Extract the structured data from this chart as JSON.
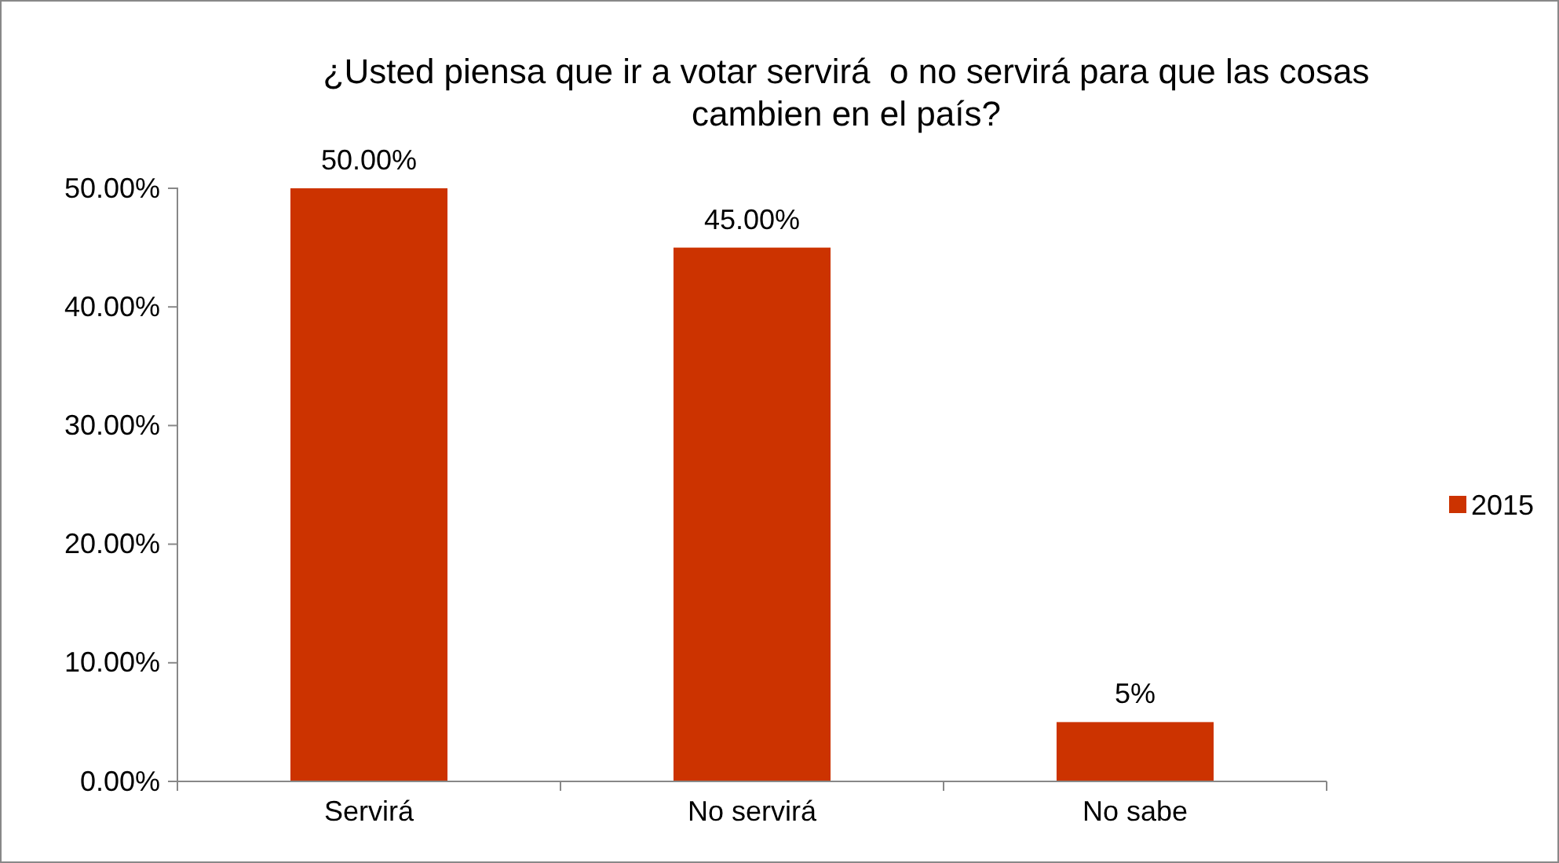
{
  "chart_data": {
    "type": "bar",
    "title": "¿Usted piensa que ir a votar servirá  o no servirá para que las cosas cambien en el país?",
    "categories": [
      "Servirá",
      "No servirá",
      "No sabe"
    ],
    "series": [
      {
        "name": "2015",
        "color": "#cc3300",
        "values": [
          50,
          45,
          5
        ],
        "value_labels": [
          "50.00%",
          "45.00%",
          "5%"
        ]
      }
    ],
    "ylim": [
      0,
      50
    ],
    "yticks": [
      {
        "value": 0,
        "label": "0.00%"
      },
      {
        "value": 10,
        "label": "10.00%"
      },
      {
        "value": 20,
        "label": "20.00%"
      },
      {
        "value": 30,
        "label": "30.00%"
      },
      {
        "value": 40,
        "label": "40.00%"
      },
      {
        "value": 50,
        "label": "50.00%"
      }
    ],
    "grid": false,
    "legend": "right"
  }
}
